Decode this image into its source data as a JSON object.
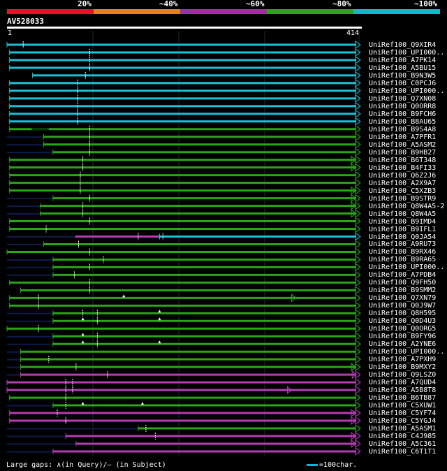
{
  "legend_scale": {
    "labels": [
      "20%",
      "~40%",
      "~60%",
      "~80%",
      "~100%"
    ],
    "colors": [
      "#e8102a",
      "#ee7a1e",
      "#a030a0",
      "#2aa516",
      "#13b8c4"
    ]
  },
  "query": {
    "name": "AV528033",
    "start": "1",
    "end": "414",
    "length": 414
  },
  "colors": {
    "cyan": "#19c2d6",
    "green": "#2aa516",
    "magenta": "#b43cb4",
    "faint": "#0e1a4a",
    "gap": "#ffffff"
  },
  "footer": {
    "gaps_text": "Large gaps: ∧(in Query)/– (in Subject)",
    "scale_text": "=100char."
  },
  "hits": [
    {
      "id": "UniRef100_Q9XIR4",
      "color": "cyan",
      "qs": 1,
      "qe": 414,
      "tri": "r",
      "gaps": [
        {
          "p": 20,
          "t": "s"
        }
      ]
    },
    {
      "id": "UniRef100_UPI000..",
      "color": "cyan",
      "qs": 4,
      "qe": 414,
      "tri": "r",
      "gaps": [
        {
          "p": 98,
          "t": "s"
        }
      ]
    },
    {
      "id": "UniRef100_A7PK14",
      "color": "cyan",
      "qs": 4,
      "qe": 414,
      "tri": "r",
      "gaps": [
        {
          "p": 98,
          "t": "s"
        }
      ]
    },
    {
      "id": "UniRef100_A5BU15",
      "color": "cyan",
      "qs": 4,
      "qe": 414,
      "tri": "r",
      "gaps": [
        {
          "p": 98,
          "t": "s"
        }
      ]
    },
    {
      "id": "UniRef100_B9N3W5",
      "color": "cyan",
      "qs": 31,
      "qe": 414,
      "tri": "r",
      "gaps": [
        {
          "p": 93,
          "t": "s"
        }
      ]
    },
    {
      "id": "UniRef100_C0PCJ6",
      "color": "cyan",
      "qs": 4,
      "qe": 414,
      "tri": "r",
      "gaps": [
        {
          "p": 84,
          "t": "s"
        }
      ]
    },
    {
      "id": "UniRef100_UPI000..",
      "color": "cyan",
      "qs": 4,
      "qe": 414,
      "tri": "r",
      "gaps": [
        {
          "p": 84,
          "t": "s"
        }
      ]
    },
    {
      "id": "UniRef100_Q7XN08",
      "color": "cyan",
      "qs": 4,
      "qe": 414,
      "tri": "r",
      "gaps": [
        {
          "p": 84,
          "t": "s"
        }
      ]
    },
    {
      "id": "UniRef100_Q0ORR8",
      "color": "cyan",
      "qs": 4,
      "qe": 414,
      "tri": "r",
      "gaps": [
        {
          "p": 84,
          "t": "s"
        }
      ]
    },
    {
      "id": "UniRef100_B9FCH6",
      "color": "cyan",
      "qs": 4,
      "qe": 414,
      "tri": "r",
      "gaps": [
        {
          "p": 84,
          "t": "s"
        }
      ]
    },
    {
      "id": "UniRef100_B8AU65",
      "color": "cyan",
      "qs": 4,
      "qe": 414,
      "tri": "r",
      "gaps": [
        {
          "p": 84,
          "t": "s"
        }
      ]
    },
    {
      "id": "UniRef100_B9S4A8",
      "color": "green",
      "qs": 4,
      "qe": 414,
      "tri": "r",
      "gaps": [
        {
          "p": 98,
          "t": "s"
        }
      ],
      "thin": [
        30,
        50
      ]
    },
    {
      "id": "UniRef100_A7PFR1",
      "color": "green",
      "qs": 44,
      "qe": 414,
      "tri": "r",
      "faint": [
        1,
        44
      ],
      "gaps": [
        {
          "p": 98,
          "t": "s"
        }
      ]
    },
    {
      "id": "UniRef100_A5ASM2",
      "color": "green",
      "qs": 44,
      "qe": 414,
      "tri": "r",
      "faint": [
        1,
        44
      ],
      "gaps": [
        {
          "p": 98,
          "t": "s"
        }
      ]
    },
    {
      "id": "UniRef100_B9HB27",
      "color": "green",
      "qs": 55,
      "qe": 414,
      "tri": "r",
      "faint": [
        1,
        55
      ],
      "gaps": [
        {
          "p": 98,
          "t": "s"
        }
      ]
    },
    {
      "id": "UniRef100_B6T348",
      "color": "green",
      "qs": 4,
      "qe": 414,
      "tri": "rr",
      "gaps": [
        {
          "p": 90,
          "t": "s"
        }
      ]
    },
    {
      "id": "UniRef100_B4FI33",
      "color": "green",
      "qs": 4,
      "qe": 414,
      "tri": "rr",
      "gaps": [
        {
          "p": 90,
          "t": "s"
        }
      ]
    },
    {
      "id": "UniRef100_Q6Z2J6",
      "color": "green",
      "qs": 4,
      "qe": 414,
      "tri": "r",
      "gaps": [
        {
          "p": 87,
          "t": "s"
        }
      ]
    },
    {
      "id": "UniRef100_A2X9A7",
      "color": "green",
      "qs": 4,
      "qe": 414,
      "tri": "r",
      "gaps": [
        {
          "p": 87,
          "t": "s"
        }
      ]
    },
    {
      "id": "UniRef100_C5XZB3",
      "color": "green",
      "qs": 4,
      "qe": 414,
      "tri": "rr",
      "gaps": [
        {
          "p": 87,
          "t": "s"
        }
      ]
    },
    {
      "id": "UniRef100_B9STR9",
      "color": "green",
      "qs": 55,
      "qe": 414,
      "tri": "rr",
      "faint": [
        1,
        55
      ],
      "gaps": [
        {
          "p": 98,
          "t": "s"
        }
      ]
    },
    {
      "id": "UniRef100_Q8W4A5-2",
      "color": "green",
      "qs": 40,
      "qe": 414,
      "tri": "rr",
      "faint": [
        1,
        40
      ],
      "gaps": [
        {
          "p": 90,
          "t": "s"
        }
      ]
    },
    {
      "id": "UniRef100_Q8W4A5",
      "color": "green",
      "qs": 40,
      "qe": 414,
      "tri": "rr",
      "faint": [
        1,
        40
      ],
      "gaps": [
        {
          "p": 90,
          "t": "s"
        }
      ]
    },
    {
      "id": "UniRef100_B9IMD4",
      "color": "green",
      "qs": 4,
      "qe": 414,
      "tri": "r",
      "gaps": [
        {
          "p": 98,
          "t": "s"
        }
      ]
    },
    {
      "id": "UniRef100_B9IFL1",
      "color": "green",
      "qs": 4,
      "qe": 414,
      "tri": "r",
      "gaps": [
        {
          "p": 47,
          "t": "s"
        }
      ]
    },
    {
      "id": "UniRef100_Q0JA54",
      "color": "cyan",
      "qs": 180,
      "qe": 414,
      "tri": "r",
      "pre": {
        "color": "magenta",
        "s": 81,
        "e": 180
      },
      "faint": [
        1,
        81
      ],
      "gaps": [
        {
          "p": 155,
          "t": "s"
        },
        {
          "p": 184,
          "t": "s"
        }
      ]
    },
    {
      "id": "UniRef100_A9RU73",
      "color": "green",
      "qs": 44,
      "qe": 414,
      "tri": "r",
      "faint": [
        1,
        44
      ],
      "gaps": [
        {
          "p": 85,
          "t": "s"
        }
      ]
    },
    {
      "id": "UniRef100_B9RX46",
      "color": "green",
      "qs": 1,
      "qe": 414,
      "tri": "r",
      "gaps": [
        {
          "p": 98,
          "t": "s"
        }
      ]
    },
    {
      "id": "UniRef100_B9RA65",
      "color": "green",
      "qs": 55,
      "qe": 414,
      "tri": "r",
      "faint": [
        1,
        55
      ],
      "gaps": [
        {
          "p": 114,
          "t": "s"
        }
      ]
    },
    {
      "id": "UniRef100_UPI000..",
      "color": "green",
      "qs": 55,
      "qe": 414,
      "tri": "r",
      "faint": [
        1,
        55
      ],
      "gaps": [
        {
          "p": 98,
          "t": "s"
        }
      ]
    },
    {
      "id": "UniRef100_A7PDB4",
      "color": "green",
      "qs": 55,
      "qe": 414,
      "tri": "r",
      "faint": [
        1,
        55
      ],
      "gaps": [
        {
          "p": 80,
          "t": "s"
        }
      ]
    },
    {
      "id": "UniRef100_Q9FH50",
      "color": "green",
      "qs": 4,
      "qe": 414,
      "tri": "r",
      "gaps": [
        {
          "p": 98,
          "t": "s"
        }
      ]
    },
    {
      "id": "UniRef100_B9SMM2",
      "color": "green",
      "qs": 17,
      "qe": 414,
      "tri": "r",
      "gaps": [
        {
          "p": 98,
          "t": "s"
        }
      ]
    },
    {
      "id": "UniRef100_Q7XN79",
      "color": "green",
      "qs": 4,
      "qe": 414,
      "tri": "r",
      "gaps": [
        {
          "p": 38,
          "t": "s"
        },
        {
          "p": 138,
          "t": "q"
        }
      ],
      "midTri": 335
    },
    {
      "id": "UniRef100_Q0J9W7",
      "color": "green",
      "qs": 4,
      "qe": 414,
      "tri": "r",
      "gaps": [
        {
          "p": 38,
          "t": "s"
        }
      ]
    },
    {
      "id": "UniRef100_Q8H595",
      "color": "green",
      "qs": 55,
      "qe": 414,
      "tri": "r",
      "faint": [
        1,
        55
      ],
      "gaps": [
        {
          "p": 90,
          "t": "s"
        },
        {
          "p": 107,
          "t": "s"
        },
        {
          "p": 180,
          "t": "q"
        }
      ]
    },
    {
      "id": "UniRef100_Q0D4U3",
      "color": "green",
      "qs": 55,
      "qe": 414,
      "tri": "r",
      "faint": [
        1,
        55
      ],
      "gaps": [
        {
          "p": 90,
          "t": "q"
        },
        {
          "p": 107,
          "t": "s"
        },
        {
          "p": 180,
          "t": "q"
        }
      ]
    },
    {
      "id": "UniRef100_Q0ORG5",
      "color": "green",
      "qs": 1,
      "qe": 414,
      "tri": "r",
      "gaps": [
        {
          "p": 38,
          "t": "s"
        }
      ]
    },
    {
      "id": "UniRef100_B9FY96",
      "color": "green",
      "qs": 55,
      "qe": 414,
      "tri": "r",
      "faint": [
        1,
        55
      ],
      "gaps": [
        {
          "p": 90,
          "t": "q"
        },
        {
          "p": 107,
          "t": "s"
        }
      ]
    },
    {
      "id": "UniRef100_A2YNE6",
      "color": "green",
      "qs": 55,
      "qe": 414,
      "tri": "r",
      "faint": [
        1,
        55
      ],
      "gaps": [
        {
          "p": 90,
          "t": "q"
        },
        {
          "p": 107,
          "t": "s"
        },
        {
          "p": 180,
          "t": "q"
        }
      ]
    },
    {
      "id": "UniRef100_UPI000..",
      "color": "green",
      "qs": 17,
      "qe": 414,
      "tri": "r",
      "faint": [
        1,
        17
      ],
      "gaps": []
    },
    {
      "id": "UniRef100_A7PXH9",
      "color": "green",
      "qs": 17,
      "qe": 414,
      "tri": "r",
      "faint": [
        1,
        17
      ],
      "gaps": [
        {
          "p": 50,
          "t": "s"
        }
      ]
    },
    {
      "id": "UniRef100_B9MXY2",
      "color": "green",
      "qs": 17,
      "qe": 414,
      "tri": "rr",
      "faint": [
        1,
        17
      ],
      "gaps": [
        {
          "p": 82,
          "t": "s"
        }
      ],
      "midTri": 405
    },
    {
      "id": "UniRef100_Q9LSZ0",
      "color": "magenta",
      "qs": 17,
      "qe": 414,
      "tri": "r",
      "faint": [
        1,
        17
      ],
      "gaps": [
        {
          "p": 119,
          "t": "s"
        }
      ],
      "midTri": 406
    },
    {
      "id": "UniRef100_A7QUD4",
      "color": "magenta",
      "qs": 1,
      "qe": 414,
      "tri": "r",
      "gaps": [
        {
          "p": 70,
          "t": "s"
        },
        {
          "p": 78,
          "t": "s"
        }
      ]
    },
    {
      "id": "UniRef100_A5B8T8",
      "color": "magenta",
      "qs": 1,
      "qe": 414,
      "tri": "r",
      "gaps": [
        {
          "p": 70,
          "t": "s"
        },
        {
          "p": 78,
          "t": "s"
        }
      ],
      "midTri": 330
    },
    {
      "id": "UniRef100_B6TB87",
      "color": "green",
      "qs": 4,
      "qe": 414,
      "tri": "r",
      "gaps": [
        {
          "p": 70,
          "t": "s"
        }
      ]
    },
    {
      "id": "UniRef100_C5XUW1",
      "color": "green",
      "qs": 55,
      "qe": 414,
      "tri": "r",
      "faint": [
        1,
        55
      ],
      "gaps": [
        {
          "p": 70,
          "t": "s"
        },
        {
          "p": 90,
          "t": "q"
        },
        {
          "p": 160,
          "t": "q"
        }
      ]
    },
    {
      "id": "UniRef100_C5YF74",
      "color": "magenta",
      "qs": 4,
      "qe": 414,
      "tri": "rr",
      "gaps": [
        {
          "p": 60,
          "t": "s"
        }
      ]
    },
    {
      "id": "UniRef100_C5YGJ4",
      "color": "magenta",
      "qs": 4,
      "qe": 414,
      "tri": "rr",
      "gaps": [
        {
          "p": 70,
          "t": "s"
        }
      ]
    },
    {
      "id": "UniRef100_A5ASM1",
      "color": "green",
      "qs": 155,
      "qe": 414,
      "tri": "r",
      "faint": [
        1,
        155
      ],
      "gaps": [
        {
          "p": 164,
          "t": "s"
        }
      ]
    },
    {
      "id": "UniRef100_C4J985",
      "color": "magenta",
      "qs": 70,
      "qe": 414,
      "tri": "rr",
      "faint": [
        1,
        70
      ],
      "gaps": [
        {
          "p": 175,
          "t": "s"
        }
      ]
    },
    {
      "id": "UniRef100_A5C361",
      "color": "magenta",
      "qs": 82,
      "qe": 414,
      "tri": "rr",
      "faint": [
        1,
        82
      ],
      "gaps": []
    },
    {
      "id": "UniRef100_C6T1T1",
      "color": "magenta",
      "qs": 55,
      "qe": 414,
      "tri": "r",
      "faint": [
        1,
        55
      ],
      "gaps": []
    }
  ]
}
